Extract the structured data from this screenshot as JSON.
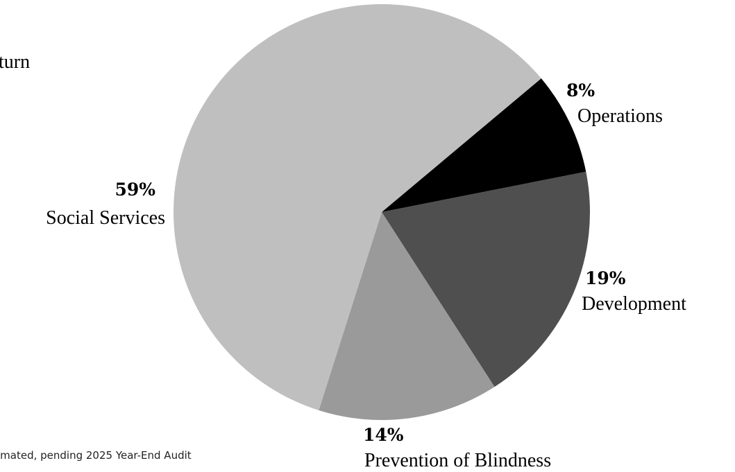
{
  "left_fragment": "turn",
  "footnote": "imated, pending 2025 Year-End Audit",
  "chart_data": {
    "type": "pie",
    "slices": [
      {
        "label": "Operations",
        "value": 8,
        "value_label": "8%",
        "color": "#000000"
      },
      {
        "label": "Development",
        "value": 19,
        "value_label": "19%",
        "color": "#4f4f4f"
      },
      {
        "label": "Prevention of Blindness",
        "value": 14,
        "value_label": "14%",
        "color": "#9a9a9a"
      },
      {
        "label": "Social Services",
        "value": 59,
        "value_label": "59%",
        "color": "#bfbfbf"
      }
    ],
    "start_angle_deg": 50
  }
}
